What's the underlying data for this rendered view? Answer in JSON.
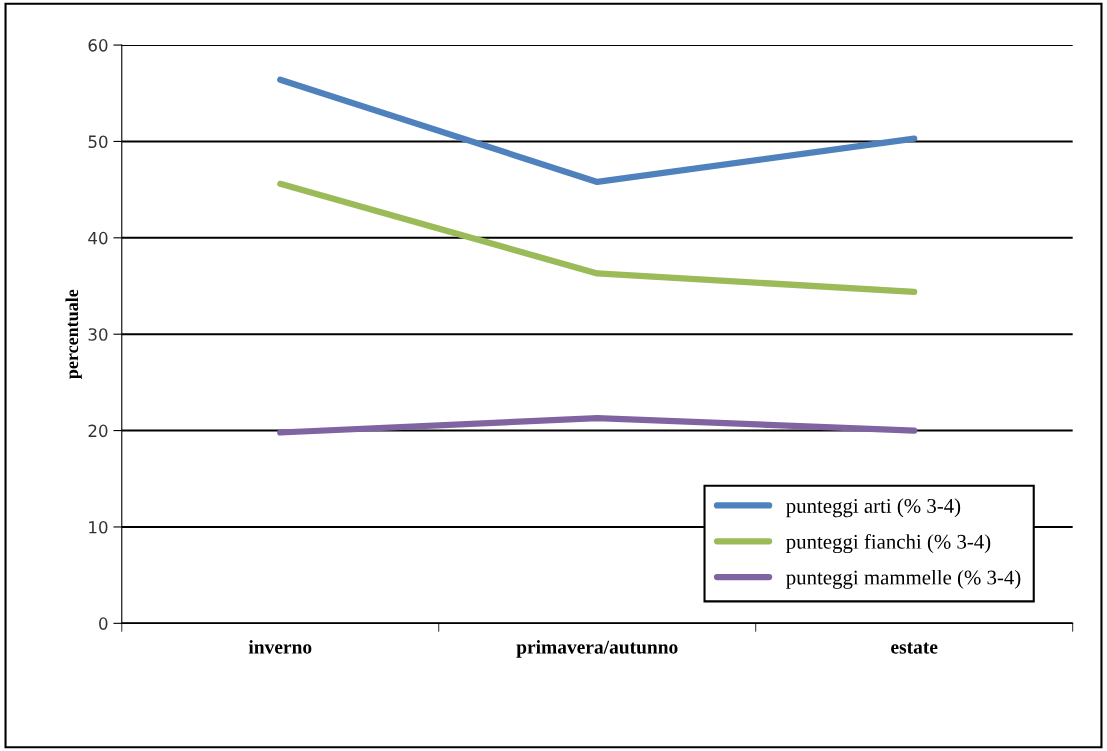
{
  "chart_data": {
    "type": "line",
    "ylabel": "percentuale",
    "categories": [
      "inverno",
      "primavera/autunno",
      "estate"
    ],
    "series": [
      {
        "name": "punteggi arti (% 3-4)",
        "color": "#4f81bd",
        "values": [
          56.4,
          45.8,
          50.3
        ]
      },
      {
        "name": "punteggi fianchi (% 3-4)",
        "color": "#9bbb59",
        "values": [
          45.6,
          36.3,
          34.4
        ]
      },
      {
        "name": "punteggi mammelle (% 3-4)",
        "color": "#8064a2",
        "values": [
          19.8,
          21.3,
          20.0
        ]
      }
    ],
    "ylim": [
      0,
      60
    ],
    "yticks": [
      0,
      10,
      20,
      30,
      40,
      50,
      60
    ],
    "grid": "y",
    "legend": "bottom right",
    "marker": "none",
    "line_style": "solid"
  }
}
